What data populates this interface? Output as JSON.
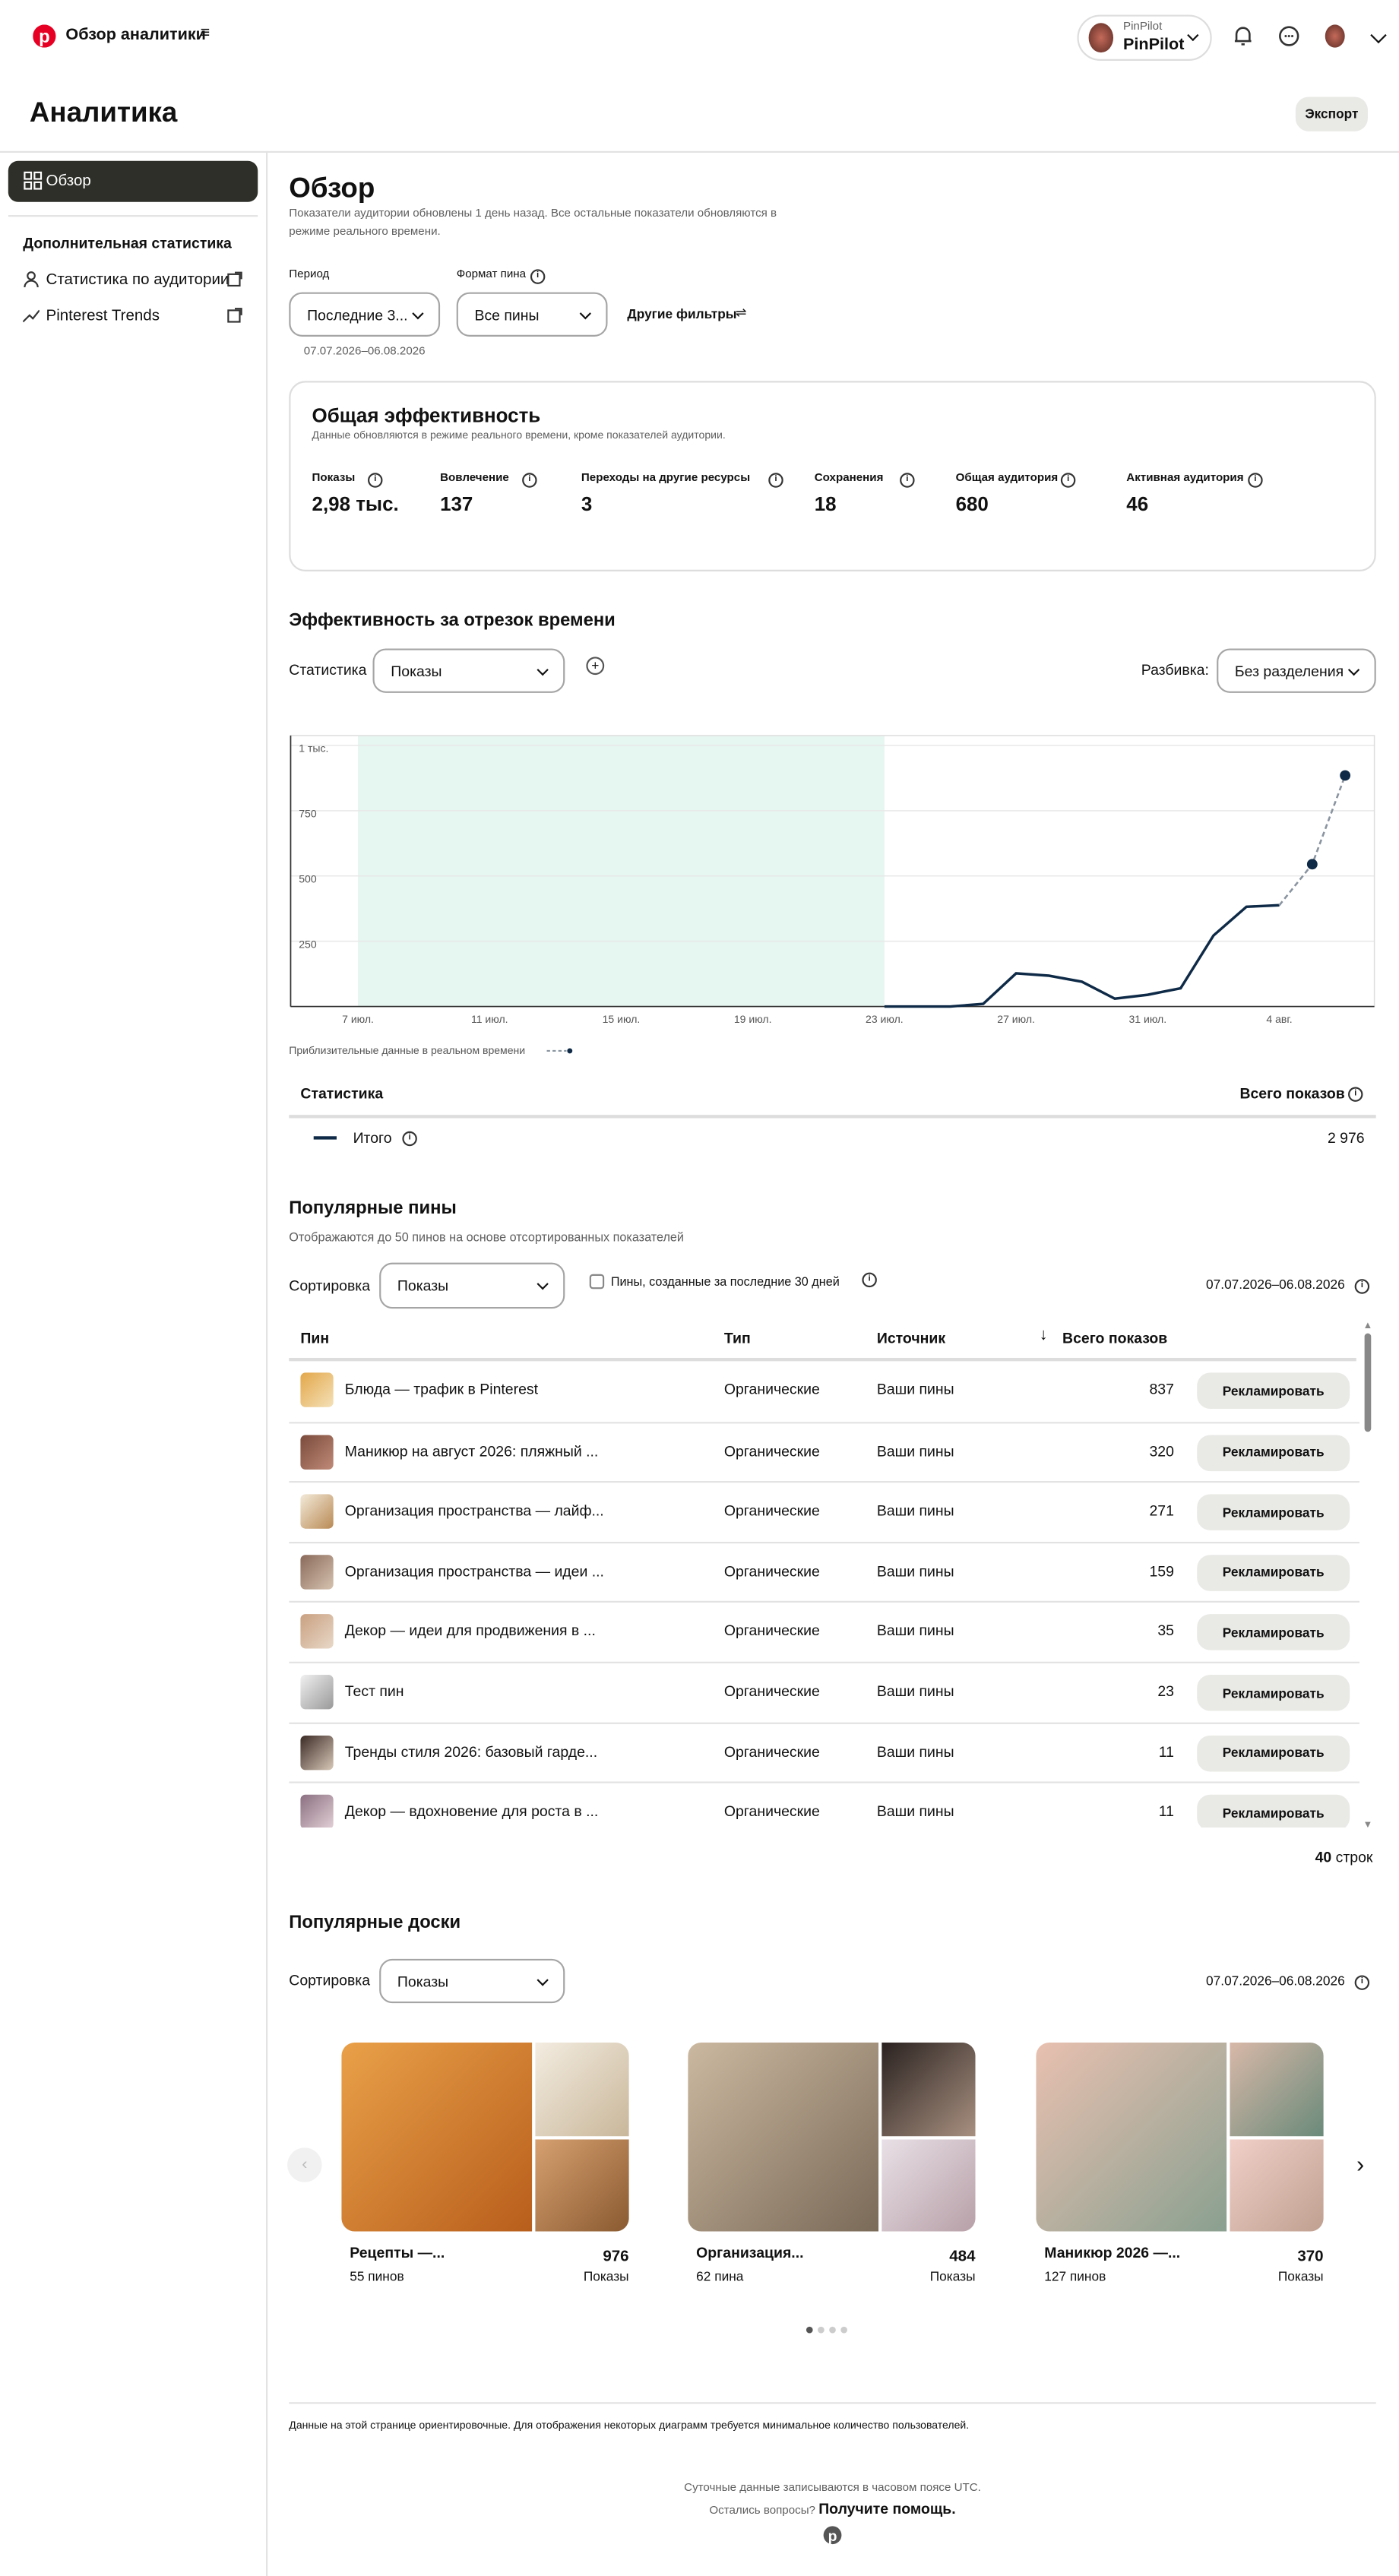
{
  "header": {
    "title": "Обзор аналитики",
    "account_label": "PinPilot",
    "account_name": "PinPilot"
  },
  "page": {
    "title": "Аналитика",
    "export": "Экспорт"
  },
  "sidebar": {
    "overview": "Обзор",
    "section": "Дополнительная статистика",
    "links": [
      "Статистика по аудитории",
      "Pinterest Trends"
    ]
  },
  "overview": {
    "title": "Обзор",
    "note": "Показатели аудитории обновлены 1 день назад. Все остальные показатели обновляются в режиме реального времени.",
    "period_label": "Период",
    "period_value": "Последние 3...",
    "format_label": "Формат пина",
    "format_value": "Все пины",
    "more_filters": "Другие фильтры",
    "date_range": "07.07.2026–06.08.2026"
  },
  "totals": {
    "title": "Общая эффективность",
    "subtitle": "Данные обновляются в режиме реального времени, кроме показателей аудитории.",
    "metrics": [
      {
        "label": "Показы",
        "value": "2,98 тыс."
      },
      {
        "label": "Вовлечение",
        "value": "137"
      },
      {
        "label": "Переходы на другие ресурсы",
        "value": "3"
      },
      {
        "label": "Сохранения",
        "value": "18"
      },
      {
        "label": "Общая аудитория",
        "value": "680"
      },
      {
        "label": "Активная аудитория",
        "value": "46"
      }
    ]
  },
  "performance": {
    "title": "Эффективность за отрезок времени",
    "stat_label": "Статистика",
    "stat_value": "Показы",
    "breakdown_label": "Разбивка:",
    "breakdown_value": "Без разделения",
    "table": {
      "headers": [
        "Статистика",
        "Всего показов"
      ],
      "rows": [
        {
          "name": "Итого",
          "total": "2 976"
        }
      ]
    }
  },
  "chart_data": {
    "type": "line",
    "categories": [
      "7 июл.",
      null,
      null,
      null,
      "11 июл.",
      null,
      null,
      null,
      "15 июл.",
      null,
      null,
      null,
      "19 июл.",
      null,
      null,
      null,
      "23 июл.",
      null,
      null,
      null,
      "27 июл.",
      null,
      null,
      null,
      "31 июл.",
      null,
      null,
      null,
      "4 авг.",
      null,
      null
    ],
    "series": [
      {
        "name": "Итого",
        "color": "#0e2a47",
        "values": [
          null,
          null,
          null,
          null,
          null,
          null,
          null,
          null,
          null,
          null,
          null,
          null,
          null,
          null,
          null,
          null,
          0,
          0,
          0,
          10,
          127,
          118,
          95,
          30,
          45,
          70,
          272,
          382,
          388,
          null,
          null
        ]
      }
    ],
    "estimate": {
      "color": "#8a94a0",
      "values": [
        null,
        null,
        null,
        null,
        null,
        null,
        null,
        null,
        null,
        null,
        null,
        null,
        null,
        null,
        null,
        null,
        null,
        null,
        null,
        null,
        null,
        null,
        null,
        null,
        null,
        null,
        null,
        null,
        null,
        545,
        885
      ]
    },
    "estimate_note": "Приблизительные данные в реальном времени",
    "ylim": [
      0,
      1000
    ],
    "yticks": [
      {
        "value": 250,
        "label": "250"
      },
      {
        "value": 500,
        "label": "500"
      },
      {
        "value": 750,
        "label": "750"
      },
      {
        "value": 1000,
        "label": "1 тыс."
      }
    ],
    "grid": true
  },
  "pins": {
    "title": "Популярные пины",
    "subtitle": "Отображаются до 50 пинов на основе отсортированных показателей",
    "sort_label": "Сортировка",
    "sort_value": "Показы",
    "checkbox": "Пины, созданные за последние 30 дней",
    "date_range": "07.07.2026–06.08.2026",
    "headers": [
      "Пин",
      "Тип",
      "Источник",
      "Всего показов"
    ],
    "action": "Рекламировать",
    "rows": [
      [
        "Блюда — трафик в Pinterest",
        "Органические",
        "Ваши пины",
        "837"
      ],
      [
        "Маникюр на август 2026: пляжный ...",
        "Органические",
        "Ваши пины",
        "320"
      ],
      [
        "Организация пространства — лайф...",
        "Органические",
        "Ваши пины",
        "271"
      ],
      [
        "Организация пространства — идеи ...",
        "Органические",
        "Ваши пины",
        "159"
      ],
      [
        "Декор — идеи для продвижения в ...",
        "Органические",
        "Ваши пины",
        "35"
      ],
      [
        "Тест пин",
        "Органические",
        "Ваши пины",
        "23"
      ],
      [
        "Тренды стиля 2026: базовый гарде...",
        "Органические",
        "Ваши пины",
        "11"
      ],
      [
        "Декор — вдохновение для роста в ...",
        "Органические",
        "Ваши пины",
        "11"
      ]
    ],
    "row_count": "40",
    "row_unit": "строк"
  },
  "boards": {
    "title": "Популярные доски",
    "sort_label": "Сортировка",
    "sort_value": "Показы",
    "date_range": "07.07.2026–06.08.2026",
    "items": [
      {
        "name": "Рецепты —...",
        "pins": "55 пинов",
        "value": "976",
        "metric": "Показы"
      },
      {
        "name": "Организация...",
        "pins": "62 пина",
        "value": "484",
        "metric": "Показы"
      },
      {
        "name": "Маникюр 2026 —...",
        "pins": "127 пинов",
        "value": "370",
        "metric": "Показы"
      }
    ]
  },
  "footer": {
    "disclaimer": "Данные на этой странице ориентировочные. Для отображения некоторых диаграмм требуется минимальное количество пользователей.",
    "timezone": "Суточные данные записываются в часовом поясе UTC.",
    "help_question": "Остались вопросы?",
    "help_link": "Получите помощь."
  }
}
